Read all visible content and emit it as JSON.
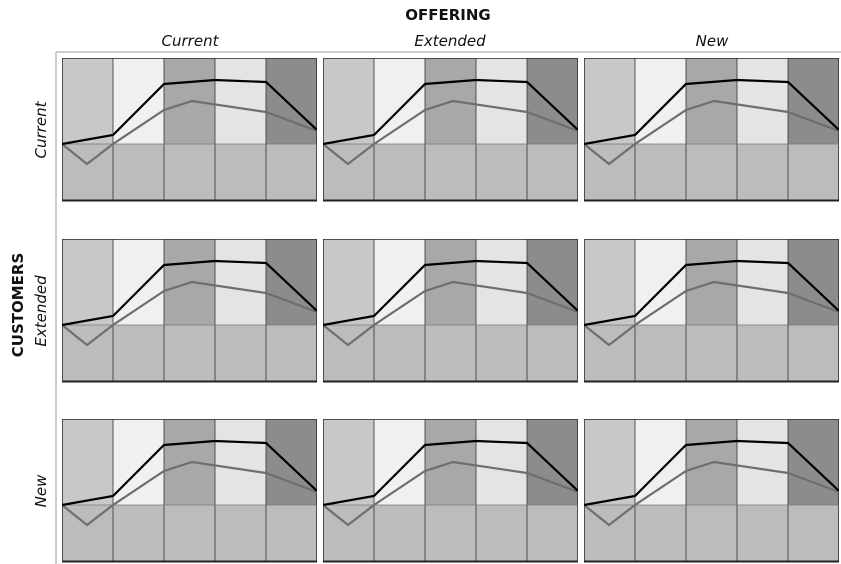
{
  "header": {
    "title": "OFFERING",
    "columns": [
      "Current",
      "Extended",
      "New"
    ]
  },
  "side": {
    "title": "CUSTOMERS",
    "rows": [
      "Current",
      "Extended",
      "New"
    ]
  }
}
